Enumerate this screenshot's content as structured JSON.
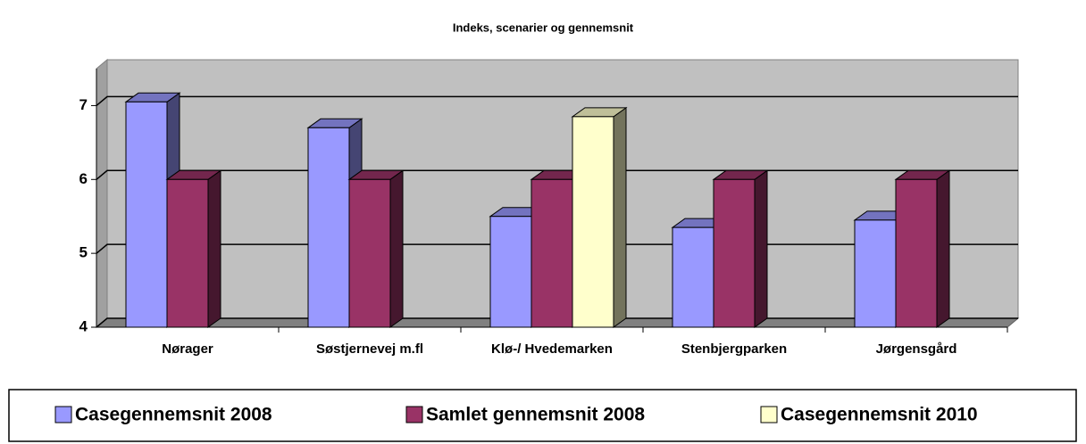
{
  "chart_data": {
    "type": "bar3d",
    "title": "Indeks, scenarier og gennemsnit",
    "categories": [
      "Nørager",
      "Søstjernevej m.fl",
      "Klø-/ Hvedemarken",
      "Stenbjergparken",
      "Jørgensgård"
    ],
    "series": [
      {
        "name": "Casegennemsnit 2008",
        "color": "#9999ff",
        "values": [
          7.05,
          6.7,
          5.5,
          5.35,
          5.45
        ]
      },
      {
        "name": "Samlet gennemsnit 2008",
        "color": "#993366",
        "values": [
          6.0,
          6.0,
          6.0,
          6.0,
          6.0
        ]
      },
      {
        "name": "Casegennemsnit 2010",
        "color": "#ffffcc",
        "values": [
          null,
          null,
          6.85,
          null,
          null
        ]
      }
    ],
    "ylim": [
      4,
      7.5
    ],
    "yticks": [
      4,
      5,
      6,
      7
    ],
    "grid": true,
    "legend": "bottom"
  }
}
